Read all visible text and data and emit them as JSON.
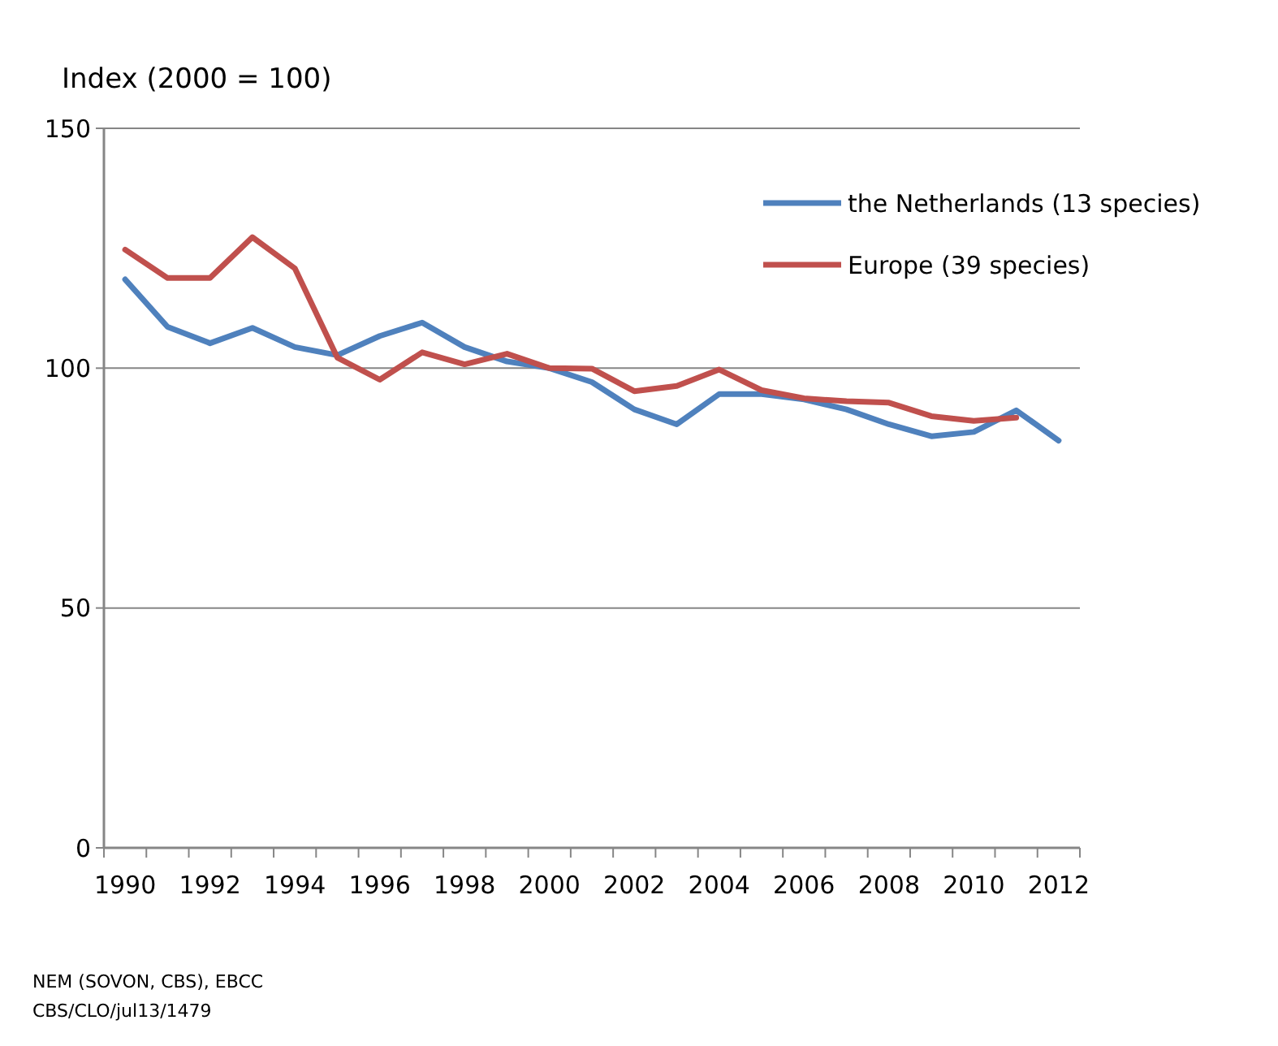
{
  "chart_data": {
    "type": "line",
    "ylabel": "Index (2000 = 100)",
    "categories": [
      "1990",
      null,
      "1992",
      null,
      "1994",
      null,
      "1996",
      null,
      "1998",
      null,
      "2000",
      null,
      "2002",
      null,
      "2004",
      null,
      "2006",
      null,
      "2008",
      null,
      "2010",
      null,
      "2012"
    ],
    "series": [
      {
        "name": "the Netherlands (13 species)",
        "color": "#4f81bd",
        "values": [
          118.5,
          108.6,
          105.2,
          108.4,
          104.4,
          102.7,
          106.7,
          109.5,
          104.4,
          101.4,
          100,
          97.1,
          91.4,
          88.3,
          94.6,
          94.6,
          93.5,
          91.4,
          88.3,
          85.8,
          86.7,
          91.2,
          84.9
        ]
      },
      {
        "name": "Europe (39 species)",
        "color": "#c0504d",
        "values": [
          124.7,
          118.8,
          118.8,
          127.3,
          120.8,
          102.2,
          97.6,
          103.3,
          100.8,
          103,
          100,
          99.9,
          95.2,
          96.3,
          99.7,
          95.4,
          93.7,
          93.1,
          92.8,
          90,
          89,
          89.7,
          null
        ]
      }
    ],
    "ylim": [
      0,
      150
    ],
    "yticks": [
      0,
      50,
      100,
      150
    ],
    "grid": "y",
    "legend": "top right",
    "marker": "none",
    "line_style": "solid",
    "annotations": [
      "NEM (SOVON, CBS), EBCC",
      "CBS/CLO/jul13/1479"
    ]
  }
}
